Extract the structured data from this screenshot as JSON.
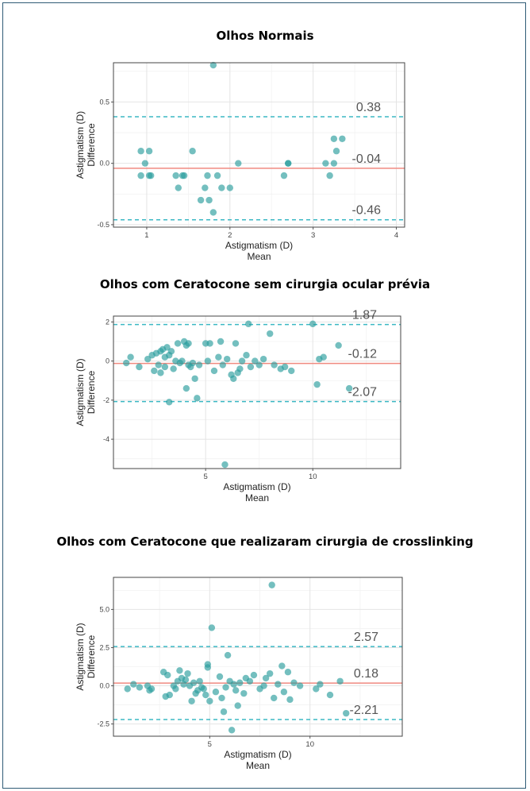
{
  "chart_data": [
    {
      "type": "scatter",
      "title": "Olhos Normais",
      "xlabel_line1": "Astigmatism (D)",
      "xlabel_line2": "Mean",
      "ylabel_line1": "Astigmatism (D)",
      "ylabel_line2": "Difference",
      "xlim": [
        0.6,
        4.1
      ],
      "ylim": [
        -0.52,
        0.82
      ],
      "xticks": [
        1,
        2,
        3,
        4
      ],
      "yticks": [
        -0.5,
        0.0,
        0.5
      ],
      "ytick_labels": [
        "-0.5",
        "0.0",
        "0.5"
      ],
      "lines": [
        {
          "label": "0.38",
          "value": 0.38,
          "style": "dashed",
          "color": "#3bb8c4"
        },
        {
          "label": "-0.04",
          "value": -0.04,
          "style": "solid",
          "color": "#f08a80"
        },
        {
          "label": "-0.46",
          "value": -0.46,
          "style": "dashed",
          "color": "#3bb8c4"
        }
      ],
      "points": [
        [
          0.93,
          0.1
        ],
        [
          0.93,
          -0.1
        ],
        [
          0.98,
          0.0
        ],
        [
          1.03,
          0.1
        ],
        [
          1.03,
          -0.1
        ],
        [
          1.05,
          -0.1
        ],
        [
          1.35,
          -0.1
        ],
        [
          1.38,
          -0.2
        ],
        [
          1.43,
          -0.1
        ],
        [
          1.45,
          -0.1
        ],
        [
          1.55,
          0.1
        ],
        [
          1.65,
          -0.3
        ],
        [
          1.7,
          -0.2
        ],
        [
          1.73,
          -0.1
        ],
        [
          1.75,
          -0.3
        ],
        [
          1.8,
          -0.4
        ],
        [
          1.8,
          0.8
        ],
        [
          1.85,
          -0.1
        ],
        [
          1.9,
          -0.2
        ],
        [
          2.0,
          -0.2
        ],
        [
          2.1,
          0.0
        ],
        [
          2.65,
          -0.1
        ],
        [
          2.7,
          0.0
        ],
        [
          2.7,
          0.0
        ],
        [
          3.15,
          0.0
        ],
        [
          3.2,
          -0.1
        ],
        [
          3.25,
          0.0
        ],
        [
          3.25,
          0.2
        ],
        [
          3.28,
          0.1
        ],
        [
          3.35,
          0.2
        ]
      ],
      "point_color": "#2a9d9d"
    },
    {
      "type": "scatter",
      "title": "Olhos com Ceratocone sem cirurgia ocular prévia",
      "xlabel_line1": "Astigmatism (D)",
      "xlabel_line2": "Mean",
      "ylabel_line1": "Astigmatism (D)",
      "ylabel_line2": "Difference",
      "xlim": [
        0.7,
        14.1
      ],
      "ylim": [
        -5.5,
        2.3
      ],
      "xticks": [
        5,
        10
      ],
      "yticks": [
        -4,
        -2,
        0,
        2
      ],
      "ytick_labels": [
        "-4",
        "-2",
        "0",
        "2"
      ],
      "lines": [
        {
          "label": "1.87",
          "value": 1.87,
          "style": "dashed",
          "color": "#3bb8c4"
        },
        {
          "label": "-0.12",
          "value": -0.12,
          "style": "solid",
          "color": "#f08a80"
        },
        {
          "label": "-2.07",
          "value": -2.07,
          "style": "dashed",
          "color": "#3bb8c4"
        }
      ],
      "points": [
        [
          1.3,
          -0.1
        ],
        [
          1.5,
          0.2
        ],
        [
          1.9,
          -0.3
        ],
        [
          2.3,
          0.1
        ],
        [
          2.5,
          0.3
        ],
        [
          2.6,
          -0.5
        ],
        [
          2.7,
          0.4
        ],
        [
          2.8,
          -0.2
        ],
        [
          2.9,
          0.5
        ],
        [
          2.9,
          -0.6
        ],
        [
          3.0,
          0.6
        ],
        [
          3.1,
          0.2
        ],
        [
          3.1,
          -0.3
        ],
        [
          3.2,
          0.7
        ],
        [
          3.3,
          -2.1
        ],
        [
          3.3,
          0.3
        ],
        [
          3.4,
          0.5
        ],
        [
          3.5,
          -0.4
        ],
        [
          3.6,
          0.0
        ],
        [
          3.7,
          0.9
        ],
        [
          3.8,
          -0.1
        ],
        [
          3.9,
          0.0
        ],
        [
          4.0,
          1.0
        ],
        [
          4.1,
          0.8
        ],
        [
          4.1,
          -1.4
        ],
        [
          4.2,
          0.9
        ],
        [
          4.2,
          -0.2
        ],
        [
          4.3,
          -0.3
        ],
        [
          4.4,
          -0.1
        ],
        [
          4.5,
          -0.9
        ],
        [
          4.6,
          -1.9
        ],
        [
          4.7,
          -0.2
        ],
        [
          5.0,
          0.9
        ],
        [
          5.1,
          0.0
        ],
        [
          5.2,
          0.9
        ],
        [
          5.4,
          -0.5
        ],
        [
          5.6,
          0.2
        ],
        [
          5.7,
          1.0
        ],
        [
          5.8,
          -0.2
        ],
        [
          5.9,
          -5.3
        ],
        [
          6.0,
          0.1
        ],
        [
          6.2,
          -0.7
        ],
        [
          6.3,
          -0.9
        ],
        [
          6.4,
          0.9
        ],
        [
          6.5,
          -0.6
        ],
        [
          6.6,
          -0.4
        ],
        [
          6.7,
          0.0
        ],
        [
          6.9,
          0.3
        ],
        [
          7.0,
          1.9
        ],
        [
          7.1,
          -0.3
        ],
        [
          7.3,
          0.0
        ],
        [
          7.5,
          -0.2
        ],
        [
          7.7,
          0.1
        ],
        [
          8.0,
          1.4
        ],
        [
          8.2,
          -0.2
        ],
        [
          8.5,
          -0.4
        ],
        [
          8.7,
          -0.3
        ],
        [
          9.0,
          -0.5
        ],
        [
          10.0,
          1.9
        ],
        [
          10.2,
          -1.2
        ],
        [
          10.3,
          0.1
        ],
        [
          10.5,
          0.2
        ],
        [
          11.2,
          0.8
        ],
        [
          11.7,
          -1.4
        ]
      ],
      "point_color": "#2a9d9d"
    },
    {
      "type": "scatter",
      "title": "Olhos com Ceratocone que realizaram cirurgia de crosslinking",
      "xlabel_line1": "Astigmatism (D)",
      "xlabel_line2": "Mean",
      "ylabel_line1": "Astigmatism (D)",
      "ylabel_line2": "Difference",
      "xlim": [
        0.2,
        14.6
      ],
      "ylim": [
        -3.3,
        7.1
      ],
      "xticks": [
        5,
        10
      ],
      "yticks": [
        -2.5,
        0.0,
        2.5,
        5.0
      ],
      "ytick_labels": [
        "-2.5",
        "0.0",
        "2.5",
        "5.0"
      ],
      "lines": [
        {
          "label": "2.57",
          "value": 2.57,
          "style": "dashed",
          "color": "#3bb8c4"
        },
        {
          "label": "0.18",
          "value": 0.18,
          "style": "solid",
          "color": "#f08a80"
        },
        {
          "label": "-2.21",
          "value": -2.21,
          "style": "dashed",
          "color": "#3bb8c4"
        }
      ],
      "points": [
        [
          0.9,
          -0.2
        ],
        [
          1.2,
          0.1
        ],
        [
          1.5,
          -0.1
        ],
        [
          1.9,
          0.0
        ],
        [
          2.0,
          -0.3
        ],
        [
          2.1,
          -0.2
        ],
        [
          2.7,
          0.9
        ],
        [
          2.8,
          -0.7
        ],
        [
          2.9,
          0.7
        ],
        [
          3.0,
          -0.6
        ],
        [
          3.2,
          0.0
        ],
        [
          3.3,
          -0.2
        ],
        [
          3.4,
          0.3
        ],
        [
          3.5,
          1.0
        ],
        [
          3.6,
          0.5
        ],
        [
          3.7,
          0.1
        ],
        [
          3.8,
          0.4
        ],
        [
          3.9,
          0.8
        ],
        [
          4.0,
          0.0
        ],
        [
          4.1,
          -1.0
        ],
        [
          4.2,
          0.2
        ],
        [
          4.3,
          -0.5
        ],
        [
          4.4,
          -0.3
        ],
        [
          4.5,
          0.3
        ],
        [
          4.6,
          -0.1
        ],
        [
          4.7,
          -0.2
        ],
        [
          4.8,
          -0.6
        ],
        [
          4.9,
          1.4
        ],
        [
          4.9,
          1.2
        ],
        [
          5.0,
          -1.0
        ],
        [
          5.1,
          3.8
        ],
        [
          5.3,
          -0.4
        ],
        [
          5.5,
          0.6
        ],
        [
          5.6,
          -0.8
        ],
        [
          5.7,
          -1.7
        ],
        [
          5.8,
          -0.1
        ],
        [
          5.9,
          2.0
        ],
        [
          6.0,
          0.3
        ],
        [
          6.1,
          -2.9
        ],
        [
          6.2,
          0.1
        ],
        [
          6.3,
          -0.3
        ],
        [
          6.4,
          -1.3
        ],
        [
          6.5,
          0.2
        ],
        [
          6.7,
          -0.5
        ],
        [
          6.8,
          0.5
        ],
        [
          7.0,
          0.3
        ],
        [
          7.2,
          0.7
        ],
        [
          7.5,
          -0.2
        ],
        [
          7.7,
          0.0
        ],
        [
          7.8,
          0.5
        ],
        [
          8.0,
          0.8
        ],
        [
          8.1,
          6.6
        ],
        [
          8.2,
          -0.8
        ],
        [
          8.4,
          0.1
        ],
        [
          8.6,
          1.3
        ],
        [
          8.7,
          -0.4
        ],
        [
          8.9,
          0.9
        ],
        [
          9.0,
          -0.9
        ],
        [
          9.2,
          0.2
        ],
        [
          9.5,
          0.0
        ],
        [
          10.3,
          -0.2
        ],
        [
          10.5,
          0.1
        ],
        [
          11.0,
          -0.6
        ],
        [
          11.5,
          0.3
        ],
        [
          11.8,
          -1.8
        ]
      ],
      "point_color": "#2a9d9d"
    }
  ]
}
